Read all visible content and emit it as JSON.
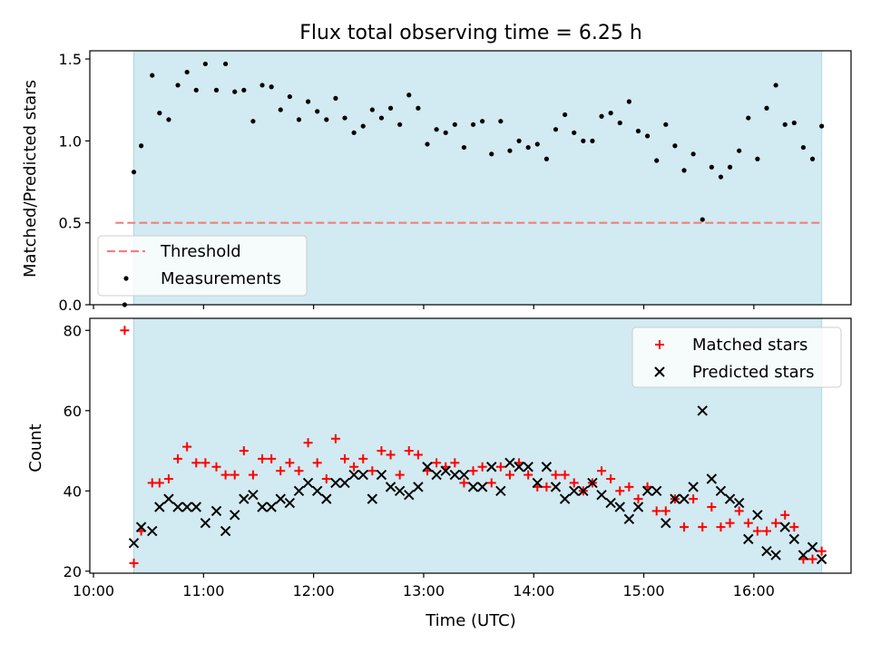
{
  "chart_data": [
    {
      "type": "scatter",
      "title": "Flux total observing time = 6.25 h",
      "ylabel": "Matched/Predicted stars",
      "xlabel": "",
      "xlim": [
        "09:58",
        "16:53"
      ],
      "ylim": [
        0,
        1.55
      ],
      "yticks": [
        "0.0",
        "0.5",
        "1.0",
        "1.5"
      ],
      "observing_window": {
        "start": "10:22",
        "end": "16:37",
        "color": "#add8e6"
      },
      "threshold": {
        "name": "Threshold",
        "value": 0.5,
        "color": "#f08080",
        "style": "dashed"
      },
      "series": [
        {
          "name": "Measurements",
          "color": "#000000",
          "marker": "dot",
          "points": [
            [
              "10:17",
              0.0
            ],
            [
              "10:22",
              0.81
            ],
            [
              "10:26",
              0.97
            ],
            [
              "10:32",
              1.4
            ],
            [
              "10:36",
              1.17
            ],
            [
              "10:41",
              1.13
            ],
            [
              "10:46",
              1.34
            ],
            [
              "10:51",
              1.42
            ],
            [
              "10:56",
              1.31
            ],
            [
              "11:01",
              1.47
            ],
            [
              "11:07",
              1.31
            ],
            [
              "11:12",
              1.47
            ],
            [
              "11:17",
              1.3
            ],
            [
              "11:22",
              1.31
            ],
            [
              "11:27",
              1.12
            ],
            [
              "11:32",
              1.34
            ],
            [
              "11:37",
              1.33
            ],
            [
              "11:42",
              1.19
            ],
            [
              "11:47",
              1.27
            ],
            [
              "11:52",
              1.13
            ],
            [
              "11:57",
              1.24
            ],
            [
              "12:02",
              1.18
            ],
            [
              "12:07",
              1.13
            ],
            [
              "12:12",
              1.26
            ],
            [
              "12:17",
              1.14
            ],
            [
              "12:22",
              1.05
            ],
            [
              "12:27",
              1.09
            ],
            [
              "12:32",
              1.19
            ],
            [
              "12:37",
              1.14
            ],
            [
              "12:42",
              1.2
            ],
            [
              "12:47",
              1.1
            ],
            [
              "12:52",
              1.28
            ],
            [
              "12:57",
              1.2
            ],
            [
              "13:02",
              0.98
            ],
            [
              "13:07",
              1.07
            ],
            [
              "13:12",
              1.05
            ],
            [
              "13:17",
              1.1
            ],
            [
              "13:22",
              0.96
            ],
            [
              "13:27",
              1.1
            ],
            [
              "13:32",
              1.12
            ],
            [
              "13:37",
              0.92
            ],
            [
              "13:42",
              1.12
            ],
            [
              "13:47",
              0.94
            ],
            [
              "13:52",
              1.0
            ],
            [
              "13:57",
              0.96
            ],
            [
              "14:02",
              0.98
            ],
            [
              "14:07",
              0.89
            ],
            [
              "14:12",
              1.07
            ],
            [
              "14:17",
              1.16
            ],
            [
              "14:22",
              1.05
            ],
            [
              "14:27",
              1.0
            ],
            [
              "14:32",
              1.0
            ],
            [
              "14:37",
              1.15
            ],
            [
              "14:42",
              1.17
            ],
            [
              "14:47",
              1.11
            ],
            [
              "14:52",
              1.24
            ],
            [
              "14:57",
              1.06
            ],
            [
              "15:02",
              1.03
            ],
            [
              "15:07",
              0.88
            ],
            [
              "15:12",
              1.1
            ],
            [
              "15:17",
              0.97
            ],
            [
              "15:22",
              0.82
            ],
            [
              "15:27",
              0.92
            ],
            [
              "15:32",
              0.52
            ],
            [
              "15:37",
              0.84
            ],
            [
              "15:42",
              0.78
            ],
            [
              "15:47",
              0.84
            ],
            [
              "15:52",
              0.94
            ],
            [
              "15:57",
              1.14
            ],
            [
              "16:02",
              0.89
            ],
            [
              "16:07",
              1.2
            ],
            [
              "16:12",
              1.34
            ],
            [
              "16:17",
              1.1
            ],
            [
              "16:22",
              1.11
            ],
            [
              "16:27",
              0.96
            ],
            [
              "16:32",
              0.89
            ],
            [
              "16:37",
              1.09
            ]
          ]
        }
      ],
      "legend": {
        "placement": "lower-left",
        "entries": [
          "Threshold",
          "Measurements"
        ]
      },
      "grid": false
    },
    {
      "type": "scatter",
      "title": "",
      "xlabel": "Time (UTC)",
      "ylabel": "Count",
      "xlim": [
        "09:58",
        "16:53"
      ],
      "ylim": [
        19.5,
        83
      ],
      "yticks": [
        "20",
        "40",
        "60",
        "80"
      ],
      "xticks": [
        "10:00",
        "11:00",
        "12:00",
        "13:00",
        "14:00",
        "15:00",
        "16:00"
      ],
      "observing_window": {
        "start": "10:22",
        "end": "16:37",
        "color": "#add8e6"
      },
      "series": [
        {
          "name": "Matched stars",
          "color": "#ff0000",
          "marker": "plus",
          "points": [
            [
              "10:17",
              80
            ],
            [
              "10:22",
              22
            ],
            [
              "10:26",
              30
            ],
            [
              "10:32",
              42
            ],
            [
              "10:36",
              42
            ],
            [
              "10:41",
              43
            ],
            [
              "10:46",
              48
            ],
            [
              "10:51",
              51
            ],
            [
              "10:56",
              47
            ],
            [
              "11:01",
              47
            ],
            [
              "11:07",
              46
            ],
            [
              "11:12",
              44
            ],
            [
              "11:17",
              44
            ],
            [
              "11:22",
              50
            ],
            [
              "11:27",
              44
            ],
            [
              "11:32",
              48
            ],
            [
              "11:37",
              48
            ],
            [
              "11:42",
              45
            ],
            [
              "11:47",
              47
            ],
            [
              "11:52",
              45
            ],
            [
              "11:57",
              52
            ],
            [
              "12:02",
              47
            ],
            [
              "12:07",
              43
            ],
            [
              "12:12",
              53
            ],
            [
              "12:17",
              48
            ],
            [
              "12:22",
              46
            ],
            [
              "12:27",
              48
            ],
            [
              "12:32",
              45
            ],
            [
              "12:37",
              50
            ],
            [
              "12:42",
              49
            ],
            [
              "12:47",
              44
            ],
            [
              "12:52",
              50
            ],
            [
              "12:57",
              49
            ],
            [
              "13:02",
              45
            ],
            [
              "13:07",
              47
            ],
            [
              "13:12",
              46
            ],
            [
              "13:17",
              47
            ],
            [
              "13:22",
              42
            ],
            [
              "13:27",
              45
            ],
            [
              "13:32",
              46
            ],
            [
              "13:37",
              42
            ],
            [
              "13:42",
              46
            ],
            [
              "13:47",
              44
            ],
            [
              "13:52",
              47
            ],
            [
              "13:57",
              44
            ],
            [
              "14:02",
              41
            ],
            [
              "14:07",
              41
            ],
            [
              "14:12",
              44
            ],
            [
              "14:17",
              44
            ],
            [
              "14:22",
              42
            ],
            [
              "14:27",
              40
            ],
            [
              "14:32",
              42
            ],
            [
              "14:37",
              45
            ],
            [
              "14:42",
              43
            ],
            [
              "14:47",
              40
            ],
            [
              "14:52",
              41
            ],
            [
              "14:57",
              38
            ],
            [
              "15:02",
              41
            ],
            [
              "15:07",
              35
            ],
            [
              "15:12",
              35
            ],
            [
              "15:17",
              38
            ],
            [
              "15:22",
              31
            ],
            [
              "15:27",
              38
            ],
            [
              "15:32",
              31
            ],
            [
              "15:37",
              36
            ],
            [
              "15:42",
              31
            ],
            [
              "15:47",
              32
            ],
            [
              "15:52",
              35
            ],
            [
              "15:57",
              32
            ],
            [
              "16:02",
              30
            ],
            [
              "16:07",
              30
            ],
            [
              "16:12",
              32
            ],
            [
              "16:17",
              34
            ],
            [
              "16:22",
              31
            ],
            [
              "16:27",
              23
            ],
            [
              "16:32",
              23
            ],
            [
              "16:37",
              25
            ]
          ]
        },
        {
          "name": "Predicted stars",
          "color": "#000000",
          "marker": "x",
          "points": [
            [
              "10:22",
              27
            ],
            [
              "10:26",
              31
            ],
            [
              "10:32",
              30
            ],
            [
              "10:36",
              36
            ],
            [
              "10:41",
              38
            ],
            [
              "10:46",
              36
            ],
            [
              "10:51",
              36
            ],
            [
              "10:56",
              36
            ],
            [
              "11:01",
              32
            ],
            [
              "11:07",
              35
            ],
            [
              "11:12",
              30
            ],
            [
              "11:17",
              34
            ],
            [
              "11:22",
              38
            ],
            [
              "11:27",
              39
            ],
            [
              "11:32",
              36
            ],
            [
              "11:37",
              36
            ],
            [
              "11:42",
              38
            ],
            [
              "11:47",
              37
            ],
            [
              "11:52",
              40
            ],
            [
              "11:57",
              42
            ],
            [
              "12:02",
              40
            ],
            [
              "12:07",
              38
            ],
            [
              "12:12",
              42
            ],
            [
              "12:17",
              42
            ],
            [
              "12:22",
              44
            ],
            [
              "12:27",
              44
            ],
            [
              "12:32",
              38
            ],
            [
              "12:37",
              44
            ],
            [
              "12:42",
              41
            ],
            [
              "12:47",
              40
            ],
            [
              "12:52",
              39
            ],
            [
              "12:57",
              41
            ],
            [
              "13:02",
              46
            ],
            [
              "13:07",
              44
            ],
            [
              "13:12",
              45
            ],
            [
              "13:17",
              44
            ],
            [
              "13:22",
              44
            ],
            [
              "13:27",
              41
            ],
            [
              "13:32",
              41
            ],
            [
              "13:37",
              46
            ],
            [
              "13:42",
              40
            ],
            [
              "13:47",
              47
            ],
            [
              "13:52",
              46
            ],
            [
              "13:57",
              46
            ],
            [
              "14:02",
              42
            ],
            [
              "14:07",
              46
            ],
            [
              "14:12",
              41
            ],
            [
              "14:17",
              38
            ],
            [
              "14:22",
              40
            ],
            [
              "14:27",
              40
            ],
            [
              "14:32",
              42
            ],
            [
              "14:37",
              39
            ],
            [
              "14:42",
              37
            ],
            [
              "14:47",
              36
            ],
            [
              "14:52",
              33
            ],
            [
              "14:57",
              36
            ],
            [
              "15:02",
              40
            ],
            [
              "15:07",
              40
            ],
            [
              "15:12",
              32
            ],
            [
              "15:17",
              38
            ],
            [
              "15:22",
              38
            ],
            [
              "15:27",
              41
            ],
            [
              "15:32",
              60
            ],
            [
              "15:37",
              43
            ],
            [
              "15:42",
              40
            ],
            [
              "15:47",
              38
            ],
            [
              "15:52",
              37
            ],
            [
              "15:57",
              28
            ],
            [
              "16:02",
              34
            ],
            [
              "16:07",
              25
            ],
            [
              "16:12",
              24
            ],
            [
              "16:17",
              31
            ],
            [
              "16:22",
              28
            ],
            [
              "16:27",
              24
            ],
            [
              "16:32",
              26
            ],
            [
              "16:37",
              23
            ]
          ]
        }
      ],
      "legend": {
        "placement": "top-right",
        "entries": [
          "Matched stars",
          "Predicted stars"
        ]
      },
      "grid": false
    }
  ]
}
